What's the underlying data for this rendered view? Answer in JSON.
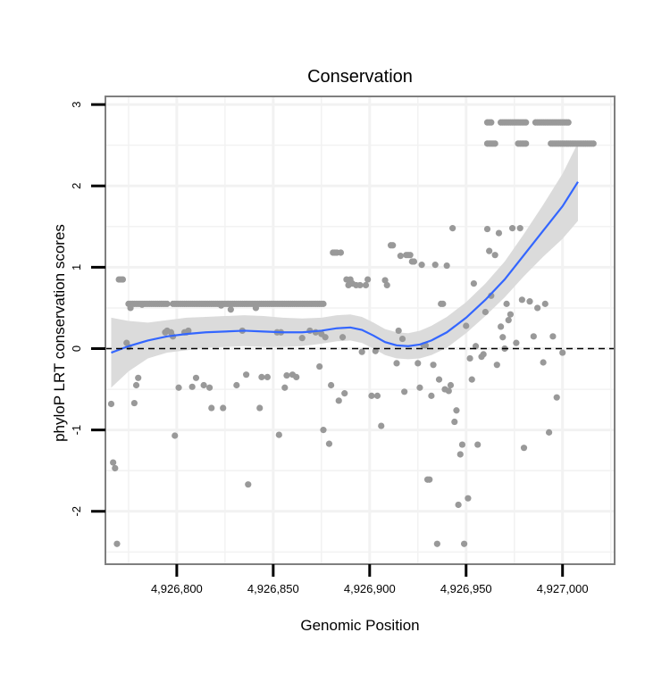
{
  "chart_data": {
    "type": "scatter",
    "title": "Conservation",
    "xlabel": "Genomic Position",
    "ylabel": "phyloP LRT conservation scores",
    "xlim": [
      4926763,
      4927027
    ],
    "ylim": [
      -2.65,
      3.1
    ],
    "x_ticks": [
      {
        "value": 4926800,
        "label": "4,926,800"
      },
      {
        "value": 4926850,
        "label": "4,926,850"
      },
      {
        "value": 4926900,
        "label": "4,926,900"
      },
      {
        "value": 4926950,
        "label": "4,926,950"
      },
      {
        "value": 4927000,
        "label": "4,927,000"
      }
    ],
    "y_ticks": [
      {
        "value": -2,
        "label": "-2"
      },
      {
        "value": -1,
        "label": "-1"
      },
      {
        "value": 0,
        "label": "0"
      },
      {
        "value": 1,
        "label": "1"
      },
      {
        "value": 2,
        "label": "2"
      },
      {
        "value": 3,
        "label": "3"
      }
    ],
    "grid": true,
    "reference_line": {
      "y": 0,
      "style": "dashed"
    },
    "colors": {
      "points": "#999999",
      "smooth": "#3366FF",
      "ribbon": "#D9D9D9",
      "grid": "#F2F2F2",
      "border": "#7F7F7F"
    },
    "point_bands": [
      {
        "y": 0.55,
        "x_ranges": [
          [
            4926775,
            4926795
          ],
          [
            4926798,
            4926876
          ]
        ]
      },
      {
        "y": 2.78,
        "x_ranges": [
          [
            4926961,
            4926963
          ],
          [
            4926968,
            4926981
          ],
          [
            4926986,
            4927003
          ]
        ]
      },
      {
        "y": 2.52,
        "x_ranges": [
          [
            4926961,
            4926965
          ],
          [
            4926977,
            4926981
          ],
          [
            4926994,
            4927016
          ]
        ]
      }
    ],
    "points": [
      [
        4926766,
        -0.68
      ],
      [
        4926767,
        -1.4
      ],
      [
        4926768,
        -1.47
      ],
      [
        4926769,
        -2.4
      ],
      [
        4926770,
        0.85
      ],
      [
        4926771,
        0.85
      ],
      [
        4926772,
        0.85
      ],
      [
        4926774,
        0.07
      ],
      [
        4926775,
        0.02
      ],
      [
        4926776,
        0.5
      ],
      [
        4926778,
        -0.67
      ],
      [
        4926779,
        -0.45
      ],
      [
        4926780,
        -0.36
      ],
      [
        4926782,
        0.54
      ],
      [
        4926794,
        0.2
      ],
      [
        4926795,
        0.22
      ],
      [
        4926797,
        0.2
      ],
      [
        4926798,
        0.15
      ],
      [
        4926799,
        -1.07
      ],
      [
        4926801,
        -0.48
      ],
      [
        4926804,
        0.2
      ],
      [
        4926805,
        0.2
      ],
      [
        4926806,
        0.22
      ],
      [
        4926808,
        -0.47
      ],
      [
        4926810,
        -0.36
      ],
      [
        4926814,
        -0.45
      ],
      [
        4926817,
        -0.48
      ],
      [
        4926818,
        -0.73
      ],
      [
        4926823,
        0.53
      ],
      [
        4926824,
        -0.73
      ],
      [
        4926828,
        0.48
      ],
      [
        4926831,
        -0.45
      ],
      [
        4926834,
        0.22
      ],
      [
        4926836,
        -0.32
      ],
      [
        4926837,
        -1.67
      ],
      [
        4926841,
        0.5
      ],
      [
        4926843,
        -0.73
      ],
      [
        4926844,
        -0.35
      ],
      [
        4926847,
        -0.35
      ],
      [
        4926852,
        0.2
      ],
      [
        4926853,
        -1.06
      ],
      [
        4926854,
        0.2
      ],
      [
        4926856,
        -0.48
      ],
      [
        4926857,
        -0.33
      ],
      [
        4926860,
        -0.32
      ],
      [
        4926862,
        -0.35
      ],
      [
        4926865,
        0.13
      ],
      [
        4926869,
        0.22
      ],
      [
        4926872,
        0.2
      ],
      [
        4926874,
        -0.22
      ],
      [
        4926875,
        0.18
      ],
      [
        4926876,
        -1.0
      ],
      [
        4926877,
        0.14
      ],
      [
        4926879,
        -1.17
      ],
      [
        4926880,
        -0.45
      ],
      [
        4926881,
        1.18
      ],
      [
        4926882,
        1.18
      ],
      [
        4926883,
        1.18
      ],
      [
        4926884,
        -0.64
      ],
      [
        4926885,
        1.18
      ],
      [
        4926886,
        0.14
      ],
      [
        4926887,
        -0.55
      ],
      [
        4926888,
        0.85
      ],
      [
        4926889,
        0.78
      ],
      [
        4926890,
        0.85
      ],
      [
        4926891,
        0.8
      ],
      [
        4926893,
        0.78
      ],
      [
        4926895,
        0.78
      ],
      [
        4926896,
        -0.04
      ],
      [
        4926898,
        0.78
      ],
      [
        4926899,
        0.85
      ],
      [
        4926901,
        -0.58
      ],
      [
        4926903,
        -0.03
      ],
      [
        4926904,
        -0.58
      ],
      [
        4926906,
        -0.95
      ],
      [
        4926908,
        0.84
      ],
      [
        4926909,
        0.78
      ],
      [
        4926911,
        1.27
      ],
      [
        4926912,
        1.27
      ],
      [
        4926914,
        -0.18
      ],
      [
        4926915,
        0.22
      ],
      [
        4926916,
        1.14
      ],
      [
        4926917,
        0.12
      ],
      [
        4926918,
        -0.53
      ],
      [
        4926919,
        1.15
      ],
      [
        4926920,
        1.15
      ],
      [
        4926921,
        1.15
      ],
      [
        4926922,
        1.07
      ],
      [
        4926923,
        1.07
      ],
      [
        4926925,
        -0.18
      ],
      [
        4926926,
        -0.48
      ],
      [
        4926927,
        1.03
      ],
      [
        4926928,
        0.04
      ],
      [
        4926929,
        0.04
      ],
      [
        4926930,
        -1.61
      ],
      [
        4926931,
        -1.61
      ],
      [
        4926932,
        -0.58
      ],
      [
        4926933,
        -0.2
      ],
      [
        4926934,
        1.03
      ],
      [
        4926935,
        -2.4
      ],
      [
        4926936,
        -0.38
      ],
      [
        4926937,
        0.55
      ],
      [
        4926938,
        0.55
      ],
      [
        4926939,
        -0.5
      ],
      [
        4926940,
        1.02
      ],
      [
        4926941,
        -0.52
      ],
      [
        4926942,
        -0.45
      ],
      [
        4926943,
        1.48
      ],
      [
        4926944,
        -0.9
      ],
      [
        4926945,
        -0.76
      ],
      [
        4926946,
        -1.92
      ],
      [
        4926947,
        -1.3
      ],
      [
        4926948,
        -1.18
      ],
      [
        4926949,
        -2.4
      ],
      [
        4926950,
        0.28
      ],
      [
        4926951,
        -1.84
      ],
      [
        4926952,
        -0.12
      ],
      [
        4926953,
        -0.38
      ],
      [
        4926954,
        0.8
      ],
      [
        4926955,
        0.03
      ],
      [
        4926956,
        -1.18
      ],
      [
        4926958,
        -0.1
      ],
      [
        4926959,
        -0.07
      ],
      [
        4926960,
        0.45
      ],
      [
        4926961,
        1.47
      ],
      [
        4926962,
        1.2
      ],
      [
        4926963,
        0.65
      ],
      [
        4926965,
        1.15
      ],
      [
        4926966,
        -0.2
      ],
      [
        4926967,
        1.42
      ],
      [
        4926968,
        0.27
      ],
      [
        4926969,
        0.14
      ],
      [
        4926970,
        0.0
      ],
      [
        4926971,
        0.55
      ],
      [
        4926972,
        0.35
      ],
      [
        4926973,
        0.42
      ],
      [
        4926974,
        1.48
      ],
      [
        4926976,
        0.07
      ],
      [
        4926978,
        1.48
      ],
      [
        4926979,
        0.6
      ],
      [
        4926980,
        -1.22
      ],
      [
        4926983,
        0.58
      ],
      [
        4926985,
        0.15
      ],
      [
        4926987,
        0.5
      ],
      [
        4926990,
        -0.17
      ],
      [
        4926991,
        0.55
      ],
      [
        4926993,
        -1.03
      ],
      [
        4926995,
        0.15
      ],
      [
        4926997,
        -0.6
      ],
      [
        4927000,
        -0.05
      ]
    ],
    "smooth": [
      {
        "x": 4926766,
        "y": -0.05,
        "lo": -0.48,
        "hi": 0.38
      },
      {
        "x": 4926775,
        "y": 0.03,
        "lo": -0.28,
        "hi": 0.34
      },
      {
        "x": 4926785,
        "y": 0.1,
        "lo": -0.12,
        "hi": 0.32
      },
      {
        "x": 4926795,
        "y": 0.15,
        "lo": -0.05,
        "hi": 0.35
      },
      {
        "x": 4926805,
        "y": 0.18,
        "lo": -0.02,
        "hi": 0.38
      },
      {
        "x": 4926815,
        "y": 0.2,
        "lo": 0.01,
        "hi": 0.39
      },
      {
        "x": 4926825,
        "y": 0.21,
        "lo": 0.02,
        "hi": 0.4
      },
      {
        "x": 4926835,
        "y": 0.22,
        "lo": 0.03,
        "hi": 0.41
      },
      {
        "x": 4926845,
        "y": 0.21,
        "lo": 0.02,
        "hi": 0.4
      },
      {
        "x": 4926855,
        "y": 0.2,
        "lo": 0.02,
        "hi": 0.38
      },
      {
        "x": 4926865,
        "y": 0.2,
        "lo": 0.03,
        "hi": 0.37
      },
      {
        "x": 4926875,
        "y": 0.22,
        "lo": 0.06,
        "hi": 0.38
      },
      {
        "x": 4926883,
        "y": 0.25,
        "lo": 0.09,
        "hi": 0.41
      },
      {
        "x": 4926890,
        "y": 0.26,
        "lo": 0.1,
        "hi": 0.42
      },
      {
        "x": 4926896,
        "y": 0.23,
        "lo": 0.07,
        "hi": 0.39
      },
      {
        "x": 4926902,
        "y": 0.16,
        "lo": 0.0,
        "hi": 0.32
      },
      {
        "x": 4926908,
        "y": 0.08,
        "lo": -0.08,
        "hi": 0.24
      },
      {
        "x": 4926914,
        "y": 0.04,
        "lo": -0.12,
        "hi": 0.2
      },
      {
        "x": 4926920,
        "y": 0.03,
        "lo": -0.13,
        "hi": 0.19
      },
      {
        "x": 4926926,
        "y": 0.05,
        "lo": -0.12,
        "hi": 0.22
      },
      {
        "x": 4926932,
        "y": 0.1,
        "lo": -0.08,
        "hi": 0.28
      },
      {
        "x": 4926940,
        "y": 0.2,
        "lo": 0.01,
        "hi": 0.39
      },
      {
        "x": 4926950,
        "y": 0.38,
        "lo": 0.19,
        "hi": 0.57
      },
      {
        "x": 4926960,
        "y": 0.6,
        "lo": 0.4,
        "hi": 0.8
      },
      {
        "x": 4926970,
        "y": 0.85,
        "lo": 0.63,
        "hi": 1.07
      },
      {
        "x": 4926980,
        "y": 1.15,
        "lo": 0.89,
        "hi": 1.41
      },
      {
        "x": 4926990,
        "y": 1.45,
        "lo": 1.13,
        "hi": 1.77
      },
      {
        "x": 4927000,
        "y": 1.75,
        "lo": 1.35,
        "hi": 2.15
      },
      {
        "x": 4927008,
        "y": 2.05,
        "lo": 1.57,
        "hi": 2.53
      }
    ]
  }
}
